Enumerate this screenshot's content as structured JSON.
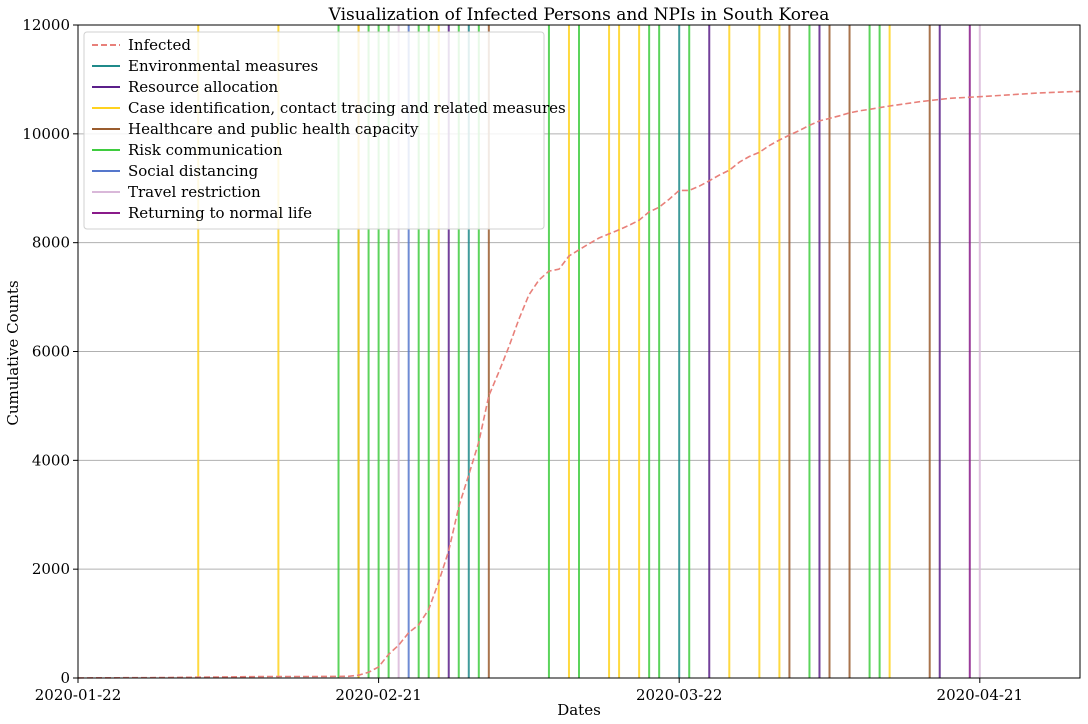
{
  "chart_data": {
    "type": "line",
    "title": "Visualization of Infected Persons and NPIs in South Korea",
    "xlabel": "Dates",
    "ylabel": "Cumulative Counts",
    "xlim": [
      "2020-01-22",
      "2020-05-01"
    ],
    "ylim": [
      0,
      12000
    ],
    "x_ticks": [
      "2020-01-22",
      "2020-02-21",
      "2020-03-22",
      "2020-04-21"
    ],
    "y_ticks": [
      0,
      2000,
      4000,
      6000,
      8000,
      10000,
      12000
    ],
    "grid": "horizontal",
    "legend_position": "top-left",
    "legend": [
      {
        "label": "Infected",
        "color": "#e8807a",
        "style": "dashed"
      },
      {
        "label": "Environmental measures",
        "color": "#1f8a8a",
        "style": "solid"
      },
      {
        "label": "Resource allocation",
        "color": "#5b1f8a",
        "style": "solid"
      },
      {
        "label": "Case identification, contact tracing and related measures",
        "color": "#ffd21f",
        "style": "solid"
      },
      {
        "label": "Healthcare and public health capacity",
        "color": "#9a5c2e",
        "style": "solid"
      },
      {
        "label": "Risk communication",
        "color": "#3fcc3f",
        "style": "solid"
      },
      {
        "label": "Social distancing",
        "color": "#5577cc",
        "style": "solid"
      },
      {
        "label": "Travel restriction",
        "color": "#d9b8d9",
        "style": "solid"
      },
      {
        "label": "Returning to normal life",
        "color": "#8a1a8a",
        "style": "solid"
      }
    ],
    "series": [
      {
        "name": "Infected",
        "color": "#e8807a",
        "points": [
          [
            "2020-01-22",
            1
          ],
          [
            "2020-01-30",
            7
          ],
          [
            "2020-02-05",
            19
          ],
          [
            "2020-02-10",
            27
          ],
          [
            "2020-02-15",
            28
          ],
          [
            "2020-02-18",
            31
          ],
          [
            "2020-02-19",
            51
          ],
          [
            "2020-02-20",
            104
          ],
          [
            "2020-02-21",
            204
          ],
          [
            "2020-02-22",
            433
          ],
          [
            "2020-02-23",
            602
          ],
          [
            "2020-02-24",
            833
          ],
          [
            "2020-02-25",
            977
          ],
          [
            "2020-02-26",
            1261
          ],
          [
            "2020-02-27",
            1766
          ],
          [
            "2020-02-28",
            2337
          ],
          [
            "2020-02-29",
            3150
          ],
          [
            "2020-03-01",
            3736
          ],
          [
            "2020-03-02",
            4335
          ],
          [
            "2020-03-03",
            5186
          ],
          [
            "2020-03-04",
            5621
          ],
          [
            "2020-03-05",
            6088
          ],
          [
            "2020-03-06",
            6593
          ],
          [
            "2020-03-07",
            7041
          ],
          [
            "2020-03-08",
            7313
          ],
          [
            "2020-03-09",
            7478
          ],
          [
            "2020-03-10",
            7513
          ],
          [
            "2020-03-11",
            7755
          ],
          [
            "2020-03-12",
            7869
          ],
          [
            "2020-03-13",
            7979
          ],
          [
            "2020-03-14",
            8086
          ],
          [
            "2020-03-15",
            8162
          ],
          [
            "2020-03-16",
            8236
          ],
          [
            "2020-03-17",
            8320
          ],
          [
            "2020-03-18",
            8413
          ],
          [
            "2020-03-19",
            8565
          ],
          [
            "2020-03-20",
            8652
          ],
          [
            "2020-03-21",
            8799
          ],
          [
            "2020-03-22",
            8961
          ],
          [
            "2020-03-23",
            8961
          ],
          [
            "2020-03-24",
            9037
          ],
          [
            "2020-03-25",
            9137
          ],
          [
            "2020-03-26",
            9241
          ],
          [
            "2020-03-27",
            9332
          ],
          [
            "2020-03-28",
            9478
          ],
          [
            "2020-03-29",
            9583
          ],
          [
            "2020-03-30",
            9661
          ],
          [
            "2020-03-31",
            9786
          ],
          [
            "2020-04-01",
            9887
          ],
          [
            "2020-04-02",
            9976
          ],
          [
            "2020-04-03",
            10062
          ],
          [
            "2020-04-04",
            10156
          ],
          [
            "2020-04-05",
            10237
          ],
          [
            "2020-04-06",
            10284
          ],
          [
            "2020-04-07",
            10331
          ],
          [
            "2020-04-08",
            10384
          ],
          [
            "2020-04-09",
            10423
          ],
          [
            "2020-04-10",
            10450
          ],
          [
            "2020-04-12",
            10512
          ],
          [
            "2020-04-15",
            10591
          ],
          [
            "2020-04-18",
            10653
          ],
          [
            "2020-04-21",
            10683
          ],
          [
            "2020-04-24",
            10718
          ],
          [
            "2020-04-27",
            10752
          ],
          [
            "2020-04-30",
            10774
          ],
          [
            "2020-05-01",
            10780
          ]
        ]
      }
    ],
    "npi_events": [
      {
        "date": "2020-02-03",
        "category": "Case identification, contact tracing and related measures"
      },
      {
        "date": "2020-02-11",
        "category": "Case identification, contact tracing and related measures"
      },
      {
        "date": "2020-02-17",
        "category": "Risk communication"
      },
      {
        "date": "2020-02-19",
        "category": "Healthcare and public health capacity"
      },
      {
        "date": "2020-02-19",
        "category": "Case identification, contact tracing and related measures"
      },
      {
        "date": "2020-02-20",
        "category": "Risk communication"
      },
      {
        "date": "2020-02-21",
        "category": "Risk communication"
      },
      {
        "date": "2020-02-22",
        "category": "Risk communication"
      },
      {
        "date": "2020-02-23",
        "category": "Travel restriction"
      },
      {
        "date": "2020-02-24",
        "category": "Social distancing"
      },
      {
        "date": "2020-02-25",
        "category": "Risk communication"
      },
      {
        "date": "2020-02-26",
        "category": "Risk communication"
      },
      {
        "date": "2020-02-27",
        "category": "Case identification, contact tracing and related measures"
      },
      {
        "date": "2020-02-28",
        "category": "Resource allocation"
      },
      {
        "date": "2020-02-29",
        "category": "Risk communication"
      },
      {
        "date": "2020-03-01",
        "category": "Environmental measures"
      },
      {
        "date": "2020-03-02",
        "category": "Risk communication"
      },
      {
        "date": "2020-03-03",
        "category": "Healthcare and public health capacity"
      },
      {
        "date": "2020-03-09",
        "category": "Risk communication"
      },
      {
        "date": "2020-03-11",
        "category": "Case identification, contact tracing and related measures"
      },
      {
        "date": "2020-03-12",
        "category": "Risk communication"
      },
      {
        "date": "2020-03-15",
        "category": "Case identification, contact tracing and related measures"
      },
      {
        "date": "2020-03-16",
        "category": "Case identification, contact tracing and related measures"
      },
      {
        "date": "2020-03-18",
        "category": "Case identification, contact tracing and related measures"
      },
      {
        "date": "2020-03-19",
        "category": "Risk communication"
      },
      {
        "date": "2020-03-20",
        "category": "Risk communication"
      },
      {
        "date": "2020-03-22",
        "category": "Environmental measures"
      },
      {
        "date": "2020-03-23",
        "category": "Risk communication"
      },
      {
        "date": "2020-03-25",
        "category": "Resource allocation"
      },
      {
        "date": "2020-03-27",
        "category": "Case identification, contact tracing and related measures"
      },
      {
        "date": "2020-03-30",
        "category": "Case identification, contact tracing and related measures"
      },
      {
        "date": "2020-04-01",
        "category": "Case identification, contact tracing and related measures"
      },
      {
        "date": "2020-04-02",
        "category": "Healthcare and public health capacity"
      },
      {
        "date": "2020-04-04",
        "category": "Risk communication"
      },
      {
        "date": "2020-04-05",
        "category": "Resource allocation"
      },
      {
        "date": "2020-04-06",
        "category": "Healthcare and public health capacity"
      },
      {
        "date": "2020-04-08",
        "category": "Healthcare and public health capacity"
      },
      {
        "date": "2020-04-10",
        "category": "Risk communication"
      },
      {
        "date": "2020-04-11",
        "category": "Risk communication"
      },
      {
        "date": "2020-04-12",
        "category": "Case identification, contact tracing and related measures"
      },
      {
        "date": "2020-04-16",
        "category": "Healthcare and public health capacity"
      },
      {
        "date": "2020-04-17",
        "category": "Resource allocation"
      },
      {
        "date": "2020-04-20",
        "category": "Returning to normal life"
      },
      {
        "date": "2020-04-21",
        "category": "Travel restriction"
      }
    ]
  }
}
